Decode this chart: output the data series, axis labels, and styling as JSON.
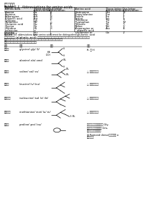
{
  "title_zh": "二、氨基酸",
  "table_title": "Table 1.1  Abbreviations for amino acids",
  "left_data": [
    [
      "Alanine",
      "Ala",
      "A"
    ],
    [
      "Arginine",
      "Arg",
      "R"
    ],
    [
      "Asparagine",
      "Asn",
      "N"
    ],
    [
      "Aspartic acid",
      "Asp",
      "D"
    ],
    [
      "Cysteine",
      "Cys",
      "C"
    ],
    [
      "Glutamine",
      "Gln",
      "Q"
    ],
    [
      "Glutamic acid",
      "Glu",
      "E"
    ],
    [
      "Glycine",
      "Gly",
      "G"
    ],
    [
      "Histidine",
      "His",
      "H"
    ],
    [
      "Isoleucine",
      "Ile",
      "I"
    ],
    [
      "Leucine",
      "Leu",
      "L"
    ],
    [
      "Lysine",
      "Lys",
      "K"
    ]
  ],
  "right_data": [
    [
      "Methionine",
      "Met",
      "M"
    ],
    [
      "Phenylalanine",
      "Phe",
      "F"
    ],
    [
      "Proline",
      "Pro",
      "P"
    ],
    [
      "Serine",
      "Ser",
      "S"
    ],
    [
      "Threonine",
      "Thr",
      "T"
    ],
    [
      "Tryptophan",
      "Trp",
      "W"
    ],
    [
      "Tyrosine",
      "Tyr",
      "Y"
    ],
    [
      "Valine",
      "Val",
      "V"
    ],
    [
      "Asparagine or",
      "Asx",
      "B"
    ],
    [
      "  aspartic acid",
      "",
      ""
    ],
    [
      "Glutamine or",
      "Glx",
      "Z"
    ],
    [
      "  glutamic acid",
      "",
      ""
    ]
  ],
  "footnote": "Footnotes: a Asx, Glx: abbreviations used when amino acid cannot be distinguished",
  "body_text1": "脂肪族氨基酸 (aliphatic acid) 是最简单的氨基酸类型，它们在分子中没有明显的功能性官能团，下",
  "body_text2": "面，将系统介绍各类，脂肪族氨基酸、芳香族氨基酸及含有正负电荷的氨基酸",
  "body_text3": "具有疏水性、极性、非极性、电荷的特征。",
  "col_header_name": "名称",
  "col_header_en": "英文",
  "col_header_struct": "结构",
  "col_header_prop": "特征",
  "aa_rows": [
    {
      "zh_name": "甘氨酸",
      "en_name": "glycine/ gly/ G/",
      "prop": "R: 仅 H",
      "struct_type": "glycine"
    },
    {
      "zh_name": "丙氨酸",
      "en_name": "alanine/ ala/ amd",
      "prop": "",
      "struct_type": "alanine"
    },
    {
      "zh_name": "缬氨酸",
      "en_name": "valine/ val/ vs/",
      "prop": "△ 疏水性氨基酸",
      "struct_type": "branched2"
    },
    {
      "zh_name": "亮氨酸",
      "en_name": "leucine/ lv/ leu/",
      "prop": "△ 疏水性氨基酸",
      "struct_type": "branched3"
    },
    {
      "zh_name": "异亮氨酸",
      "en_name": "isoleucine/ isol lv/ ile/",
      "prop": "△ 疏水性氨基酸",
      "struct_type": "branched3b"
    },
    {
      "zh_name": "甲硫氨酸",
      "en_name": "methionine/ met/ lu/ m/",
      "prop": "△ 疏水性氨基酸",
      "struct_type": "methionine"
    },
    {
      "zh_name": "脯氨酸",
      "en_name": "proline/ pro/ leu/",
      "prop": "唯一一种具有显著刚性的 Gly-\n脯氨酸替代非常罕见的 G/α-\n脯氨酸替代非常常用。\n⊙ Ramand dense，几乎仅出 α\n螺旋处出现",
      "struct_type": "proline"
    }
  ],
  "bg_color": "#ffffff",
  "text_color": "#000000"
}
